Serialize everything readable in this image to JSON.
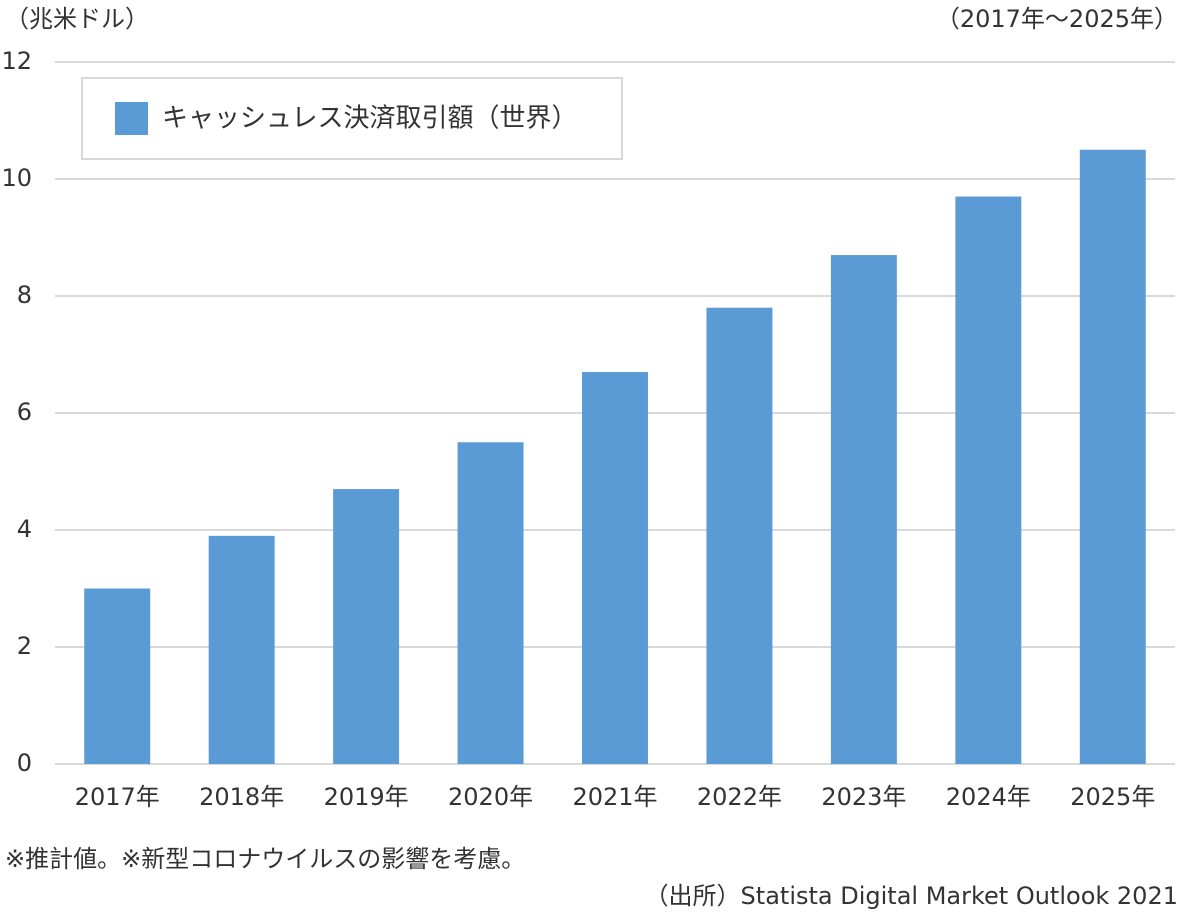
{
  "chart_data": {
    "type": "bar",
    "unit_label": "（兆米ドル）",
    "period_label": "（2017年～2025年）",
    "categories": [
      "2017年",
      "2018年",
      "2019年",
      "2020年",
      "2021年",
      "2022年",
      "2023年",
      "2024年",
      "2025年"
    ],
    "series": [
      {
        "name": "キャッシュレス決済取引額（世界）",
        "color": "#5b9bd5",
        "values": [
          3.0,
          3.9,
          4.7,
          5.5,
          6.7,
          7.8,
          8.7,
          9.7,
          10.5
        ]
      }
    ],
    "ylim": [
      0,
      12
    ],
    "yticks": [
      0,
      2,
      4,
      6,
      8,
      10,
      12
    ],
    "grid": true,
    "legend": "top-left",
    "footnote": "※推計値。※新型コロナウイルスの影響を考慮。",
    "source": "（出所）Statista Digital Market Outlook 2021"
  }
}
